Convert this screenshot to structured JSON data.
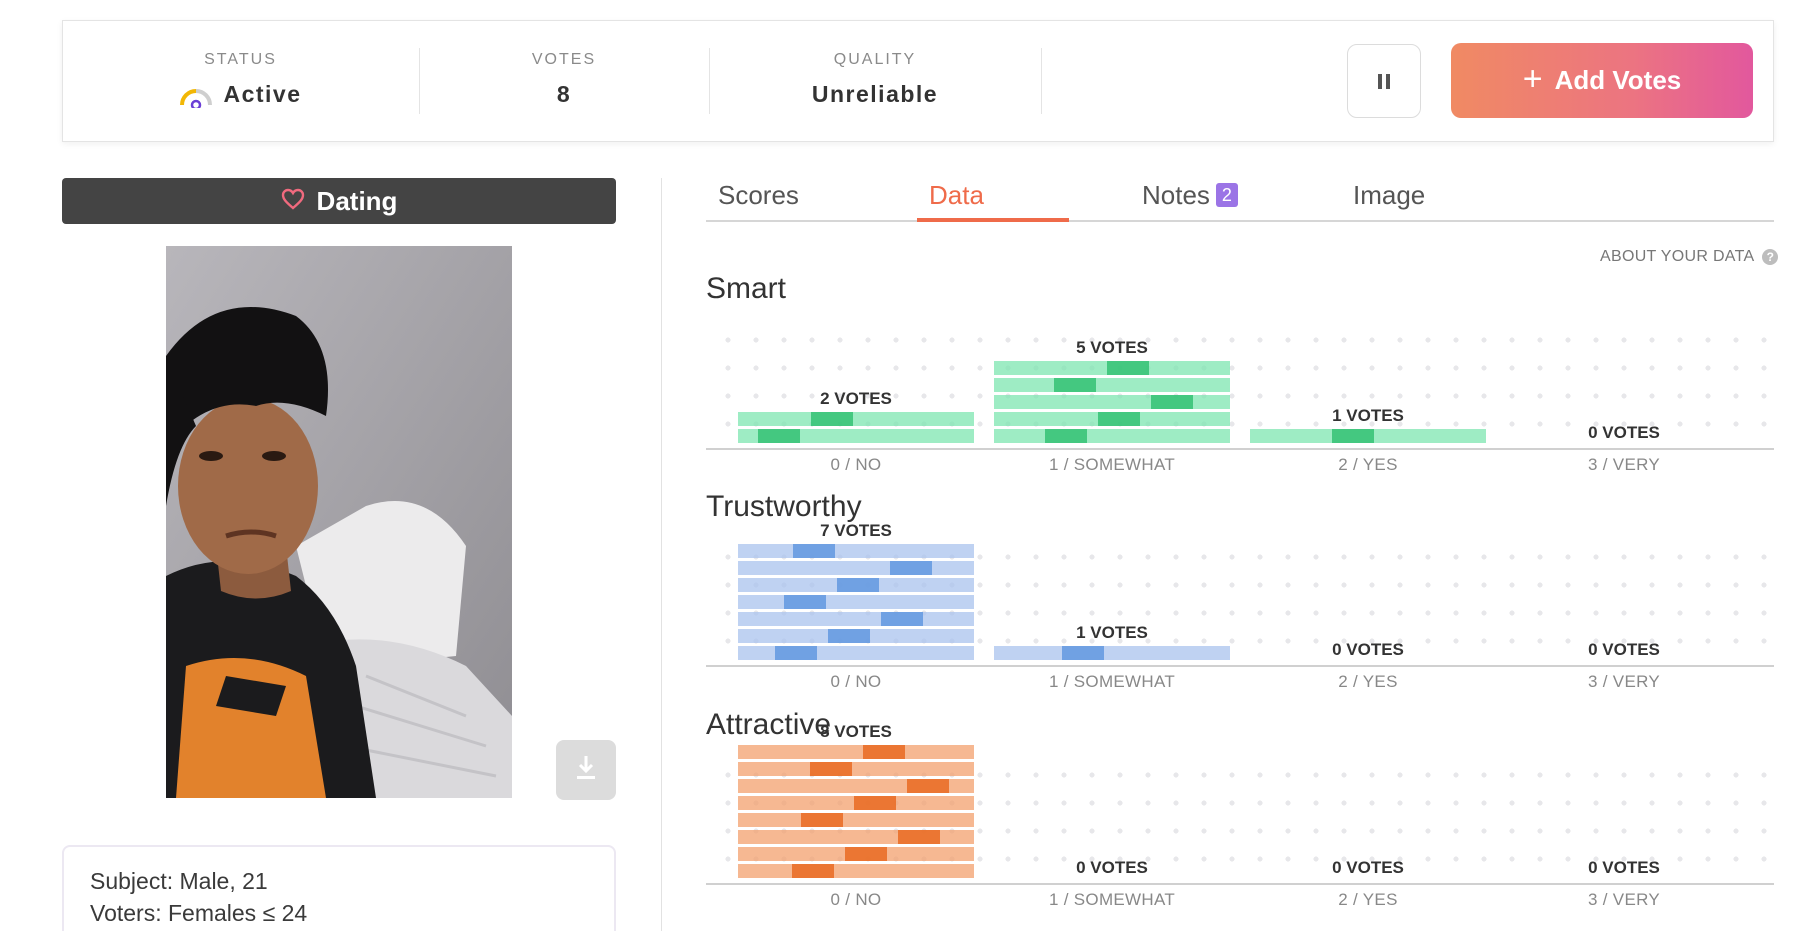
{
  "status_bar": {
    "status_label": "STATUS",
    "status_value": "Active",
    "votes_label": "VOTES",
    "votes_value": "8",
    "quality_label": "QUALITY",
    "quality_value": "Unreliable",
    "add_votes_label": "Add Votes"
  },
  "left": {
    "category": "Dating",
    "subject": "Subject: Male, 21",
    "voters": "Voters: Females ≤ 24"
  },
  "tabs": {
    "scores": "Scores",
    "data": "Data",
    "notes": "Notes",
    "notes_count": "2",
    "image": "Image",
    "active": "Data"
  },
  "about_data": "ABOUT YOUR DATA",
  "colors": {
    "accent": "#ef6b4a",
    "smart": "#7ee6b0",
    "smart_dark": "#2dbf6f",
    "trustworthy": "#a9c3ee",
    "trustworthy_dark": "#5c95df",
    "attractive": "#f3a06e",
    "attractive_dark": "#e8651c"
  },
  "categories": [
    "0 / NO",
    "1 / SOMEWHAT",
    "2 / YES",
    "3 / VERY"
  ],
  "traits": [
    {
      "key": "smart",
      "name": "Smart",
      "vote_labels": [
        "2 VOTES",
        "5 VOTES",
        "1 VOTES",
        "0 VOTES"
      ],
      "votes": [
        2,
        5,
        1,
        0
      ]
    },
    {
      "key": "trustworthy",
      "name": "Trustworthy",
      "vote_labels": [
        "7 VOTES",
        "1 VOTES",
        "0 VOTES",
        "0 VOTES"
      ],
      "votes": [
        7,
        1,
        0,
        0
      ]
    },
    {
      "key": "attractive",
      "name": "Attractive",
      "vote_labels": [
        "8 VOTES",
        "0 VOTES",
        "0 VOTES",
        "0 VOTES"
      ],
      "votes": [
        8,
        0,
        0,
        0
      ]
    }
  ]
}
